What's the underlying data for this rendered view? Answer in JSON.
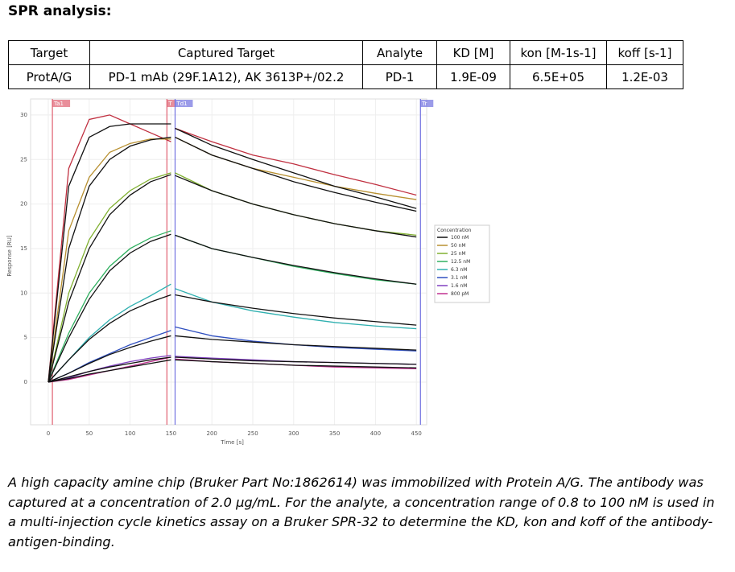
{
  "title": "SPR analysis:",
  "table": {
    "headers": [
      "Target",
      "Captured Target",
      "Analyte",
      "KD [M]",
      "kon [M-1s-1]",
      "koff [s-1]"
    ],
    "row": [
      "ProtA/G",
      "PD-1 mAb (29F.1A12), AK 3613P+/02.2",
      "PD-1",
      "1.9E-09",
      "6.5E+05",
      "1.2E-03"
    ]
  },
  "caption": "A high capacity amine chip (Bruker Part No:1862614) was immobilized with Protein A/G. The antibody was captured at a concentration of 2.0 µg/mL. For the analyte, a concentration range of 0.8 to 100 nM is used in a multi-injection cycle kinetics assay on a Bruker SPR-32 to determine the KD, kon and koff of the antibody-antigen-binding.",
  "chart_data": {
    "type": "line",
    "xlabel": "Time [s]",
    "ylabel": "Response [RU]",
    "xlim": [
      -10,
      460
    ],
    "ylim": [
      -5,
      32
    ],
    "xticks": [
      0,
      50,
      100,
      150,
      200,
      250,
      300,
      350,
      400,
      450
    ],
    "yticks": [
      0,
      5,
      10,
      15,
      20,
      25,
      30
    ],
    "legend_title": "Concentration",
    "legend_position": "right",
    "markers": [
      {
        "label": "Ta1",
        "t": 5,
        "color": "#e06070"
      },
      {
        "label": "T",
        "t": 145,
        "color": "#e06070"
      },
      {
        "label": "Td1",
        "t": 155,
        "color": "#7070e0"
      },
      {
        "label": "Tr",
        "t": 455,
        "color": "#7070e0"
      }
    ],
    "t": [
      0,
      25,
      50,
      75,
      100,
      125,
      150,
      155,
      200,
      250,
      300,
      350,
      400,
      450
    ],
    "series": [
      {
        "name": "100 nM",
        "color": "#c03040",
        "values": [
          0,
          24,
          29.5,
          30,
          29,
          28,
          27,
          28.5,
          27,
          25.5,
          24.5,
          23.3,
          22.2,
          21
        ]
      },
      {
        "name": "50 nM",
        "color": "#b89030",
        "values": [
          0,
          17,
          23,
          25.8,
          26.8,
          27.3,
          27.3,
          27.5,
          25.5,
          24,
          23,
          22,
          21.2,
          20.5
        ]
      },
      {
        "name": "25 nM",
        "color": "#80b030",
        "values": [
          0,
          10,
          16,
          19.5,
          21.5,
          22.8,
          23.5,
          23.5,
          21.5,
          20,
          18.8,
          17.8,
          17,
          16.5
        ]
      },
      {
        "name": "12.5 nM",
        "color": "#30b060",
        "values": [
          0,
          5.5,
          10,
          13,
          15,
          16.2,
          17,
          16.5,
          15,
          14,
          13,
          12.2,
          11.5,
          11
        ]
      },
      {
        "name": "6.3 nM",
        "color": "#30b0b0",
        "values": [
          0,
          2.5,
          5,
          7,
          8.5,
          9.7,
          11,
          10.5,
          9,
          8,
          7.3,
          6.7,
          6.3,
          6
        ]
      },
      {
        "name": "3.1 nM",
        "color": "#3050c0",
        "values": [
          0,
          1,
          2.2,
          3.2,
          4.2,
          5,
          5.8,
          6.2,
          5.2,
          4.6,
          4.2,
          3.9,
          3.7,
          3.5
        ]
      },
      {
        "name": "1.6 nM",
        "color": "#8040c0",
        "values": [
          0,
          0.5,
          1.2,
          1.8,
          2.3,
          2.7,
          3,
          2.9,
          2.7,
          2.5,
          2.3,
          2.2,
          2.1,
          2
        ]
      },
      {
        "name": "800 pM",
        "color": "#c03090",
        "values": [
          0,
          0.3,
          0.8,
          1.3,
          1.8,
          2.3,
          2.8,
          2.6,
          2.3,
          2.1,
          1.9,
          1.7,
          1.6,
          1.5
        ]
      }
    ],
    "fits": [
      [
        0,
        22,
        27.5,
        28.7,
        29,
        29,
        29,
        28.5,
        26.6,
        25,
        23.5,
        22,
        20.8,
        19.5
      ],
      [
        0,
        15,
        22,
        25,
        26.5,
        27.2,
        27.5,
        27.5,
        25.5,
        24,
        22.5,
        21.3,
        20.2,
        19.2
      ],
      [
        0,
        9,
        15,
        18.8,
        21,
        22.5,
        23.3,
        23.2,
        21.5,
        20,
        18.8,
        17.8,
        17,
        16.3
      ],
      [
        0,
        5,
        9.3,
        12.5,
        14.5,
        15.8,
        16.6,
        16.5,
        15,
        14,
        13.1,
        12.3,
        11.6,
        11
      ],
      [
        0,
        2.5,
        4.8,
        6.6,
        8,
        9,
        9.8,
        9.8,
        9,
        8.3,
        7.7,
        7.2,
        6.8,
        6.4
      ],
      [
        0,
        1,
        2.1,
        3.1,
        3.9,
        4.6,
        5.2,
        5.2,
        4.8,
        4.5,
        4.2,
        4,
        3.8,
        3.6
      ],
      [
        0,
        0.6,
        1.2,
        1.7,
        2.1,
        2.5,
        2.8,
        2.8,
        2.6,
        2.4,
        2.3,
        2.2,
        2.1,
        2
      ],
      [
        0,
        0.4,
        0.9,
        1.3,
        1.7,
        2.1,
        2.5,
        2.5,
        2.3,
        2.1,
        1.9,
        1.8,
        1.7,
        1.6
      ]
    ]
  }
}
